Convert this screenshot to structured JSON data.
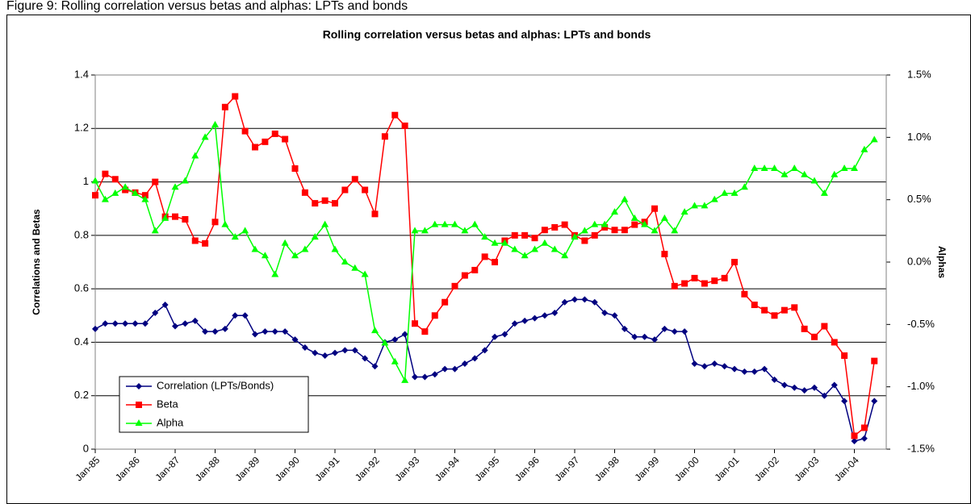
{
  "caption": "Figure 9: Rolling correlation versus betas and alphas: LPTs and bonds",
  "chart_data": {
    "type": "line",
    "title": "Rolling correlation versus betas and alphas: LPTs and bonds",
    "ylabel": "Correlations and Betas",
    "y2label": "Alphas",
    "categories": [
      "Jan-85",
      null,
      null,
      null,
      "Jan-86",
      null,
      null,
      null,
      "Jan-87",
      null,
      null,
      null,
      "Jan-88",
      null,
      null,
      null,
      "Jan-89",
      null,
      null,
      null,
      "Jan-90",
      null,
      null,
      null,
      "Jan-91",
      null,
      null,
      null,
      "Jan-92",
      null,
      null,
      null,
      "Jan-93",
      null,
      null,
      null,
      "Jan-94",
      null,
      null,
      null,
      "Jan-95",
      null,
      null,
      null,
      "Jan-96",
      null,
      null,
      null,
      "Jan-97",
      null,
      null,
      null,
      "Jan-98",
      null,
      null,
      null,
      "Jan-99",
      null,
      null,
      null,
      "Jan-00",
      null,
      null,
      null,
      "Jan-01",
      null,
      null,
      null,
      "Jan-02",
      null,
      null,
      null,
      "Jan-03",
      null,
      null,
      null,
      "Jan-04",
      null,
      null
    ],
    "ylim": [
      0,
      1.4
    ],
    "yticks": [
      0,
      0.2,
      0.4,
      0.6,
      0.8,
      1,
      1.2,
      1.4
    ],
    "y2lim": [
      -1.5,
      1.5
    ],
    "y2ticks": [
      {
        "value": -1.5,
        "label": "-1.5%"
      },
      {
        "value": -1,
        "label": "-1.0%"
      },
      {
        "value": -0.5,
        "label": "-0.5%"
      },
      {
        "value": 0,
        "label": "0.0%"
      },
      {
        "value": 0.5,
        "label": "0.5%"
      },
      {
        "value": 1,
        "label": "1.0%"
      },
      {
        "value": 1.5,
        "label": "1.5%"
      }
    ],
    "grid": true,
    "legend": "lower left",
    "series": [
      {
        "name": "Correlation (LPTs/Bonds)",
        "color": "#000080",
        "marker": "diamond",
        "values": [
          0.45,
          0.47,
          0.47,
          0.47,
          0.47,
          0.47,
          0.51,
          0.54,
          0.46,
          0.47,
          0.48,
          0.44,
          0.44,
          0.45,
          0.5,
          0.5,
          0.43,
          0.44,
          0.44,
          0.44,
          0.41,
          0.38,
          0.36,
          0.35,
          0.36,
          0.37,
          0.37,
          0.34,
          0.31,
          0.4,
          0.41,
          0.43,
          0.27,
          0.27,
          0.28,
          0.3,
          0.3,
          0.32,
          0.34,
          0.37,
          0.42,
          0.43,
          0.47,
          0.48,
          0.49,
          0.5,
          0.51,
          0.55,
          0.56,
          0.56,
          0.55,
          0.51,
          0.5,
          0.45,
          0.42,
          0.42,
          0.41,
          0.45,
          0.44,
          0.44,
          0.32,
          0.31,
          0.32,
          0.31,
          0.3,
          0.29,
          0.29,
          0.3,
          0.26,
          0.24,
          0.23,
          0.22,
          0.23,
          0.2,
          0.24,
          0.18,
          0.03,
          0.04,
          0.18
        ]
      },
      {
        "name": "Beta",
        "color": "#ff0000",
        "marker": "square",
        "values": [
          0.95,
          1.03,
          1.01,
          0.97,
          0.96,
          0.95,
          1.0,
          0.87,
          0.87,
          0.86,
          0.78,
          0.77,
          0.85,
          1.28,
          1.32,
          1.19,
          1.13,
          1.15,
          1.18,
          1.16,
          1.05,
          0.96,
          0.92,
          0.93,
          0.92,
          0.97,
          1.01,
          0.97,
          0.88,
          1.17,
          1.25,
          1.21,
          0.47,
          0.44,
          0.5,
          0.55,
          0.61,
          0.65,
          0.67,
          0.72,
          0.7,
          0.78,
          0.8,
          0.8,
          0.79,
          0.82,
          0.83,
          0.84,
          0.8,
          0.78,
          0.8,
          0.83,
          0.82,
          0.82,
          0.84,
          0.85,
          0.9,
          0.73,
          0.61,
          0.62,
          0.64,
          0.62,
          0.63,
          0.64,
          0.7,
          0.58,
          0.54,
          0.52,
          0.5,
          0.52,
          0.53,
          0.45,
          0.42,
          0.46,
          0.4,
          0.35,
          0.05,
          0.08,
          0.33
        ]
      },
      {
        "name": "Alpha",
        "color": "#00ff00",
        "marker": "triangle",
        "axis": "y2",
        "values": [
          0.65,
          0.5,
          0.55,
          0.6,
          0.55,
          0.5,
          0.25,
          0.35,
          0.6,
          0.65,
          0.85,
          1.0,
          1.1,
          0.3,
          0.2,
          0.25,
          0.1,
          0.05,
          -0.1,
          0.15,
          0.05,
          0.1,
          0.2,
          0.3,
          0.1,
          0,
          -0.05,
          -0.1,
          -0.55,
          -0.65,
          -0.8,
          -0.95,
          0.25,
          0.25,
          0.3,
          0.3,
          0.3,
          0.25,
          0.3,
          0.2,
          0.15,
          0.15,
          0.1,
          0.05,
          0.1,
          0.15,
          0.1,
          0.05,
          0.2,
          0.25,
          0.3,
          0.3,
          0.4,
          0.5,
          0.35,
          0.3,
          0.25,
          0.35,
          0.25,
          0.4,
          0.45,
          0.45,
          0.5,
          0.55,
          0.55,
          0.6,
          0.75,
          0.75,
          0.75,
          0.7,
          0.75,
          0.7,
          0.65,
          0.55,
          0.7,
          0.75,
          0.75,
          0.9,
          0.98
        ]
      }
    ]
  }
}
